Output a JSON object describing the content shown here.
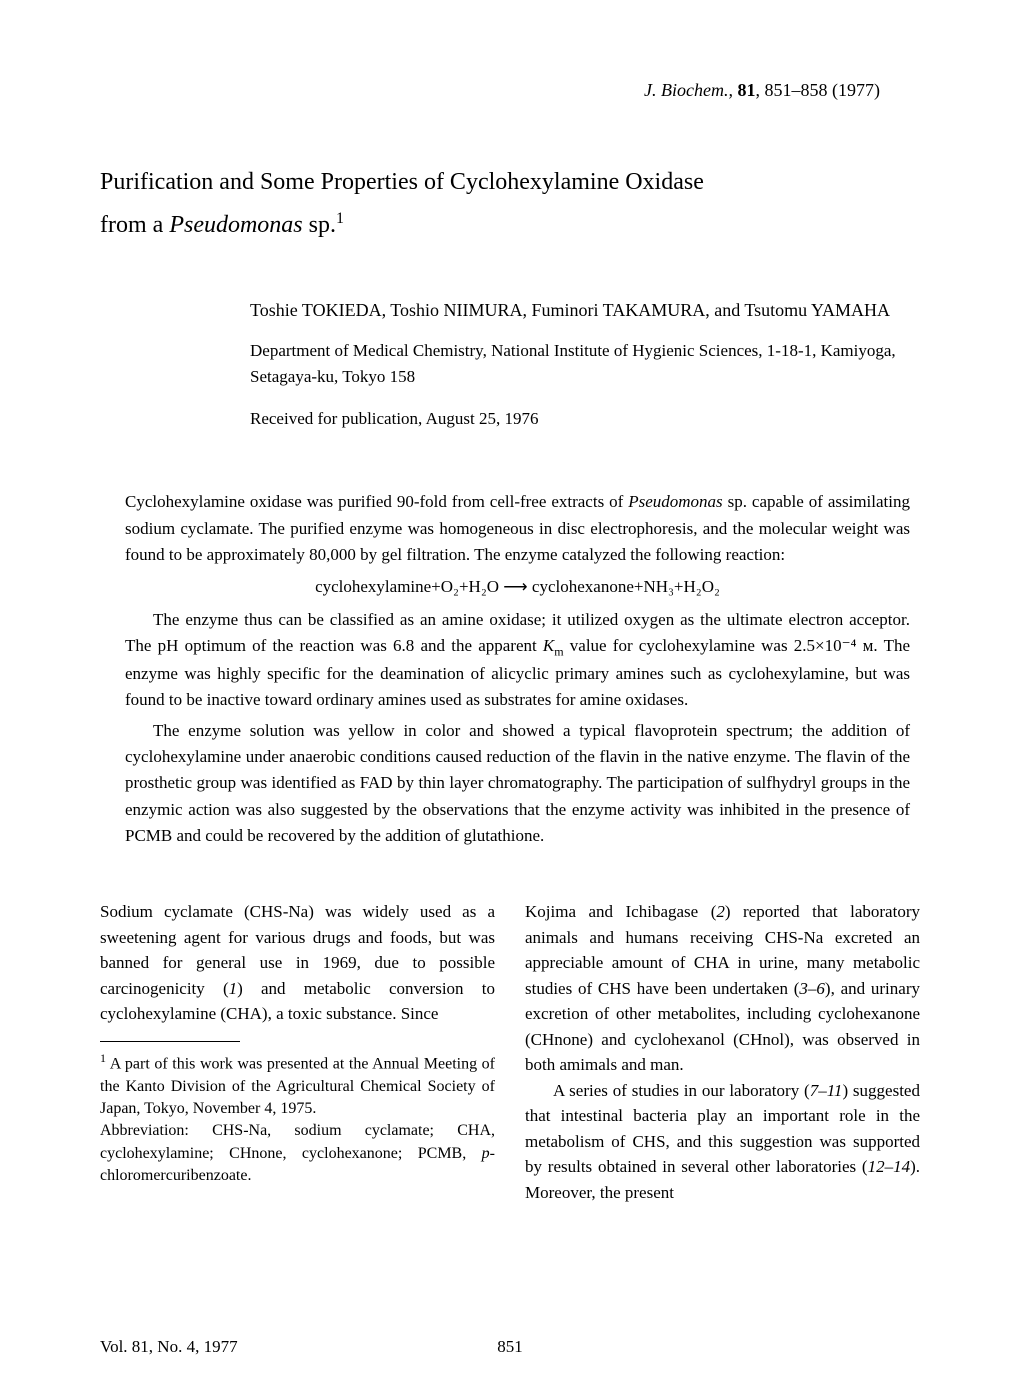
{
  "journal": {
    "name": "J. Biochem.,",
    "volume": "81",
    "pages": "851–858 (1977)"
  },
  "title": {
    "line1": "Purification and Some Properties of Cyclohexylamine Oxidase",
    "line2_prefix": "from a ",
    "line2_species": "Pseudomonas",
    "line2_suffix": " sp.",
    "footnote_mark": "1"
  },
  "authors": "Toshie TOKIEDA, Toshio NIIMURA, Fuminori TAKAMURA, and Tsutomu YAMAHA",
  "affiliation": "Department of Medical Chemistry, National Institute of Hygienic Sciences, 1-18-1, Kamiyoga, Setagaya-ku, Tokyo 158",
  "received": "Received for publication, August 25, 1976",
  "abstract": {
    "p1_a": "Cyclohexylamine oxidase was purified 90-fold from cell-free extracts of ",
    "p1_species": "Pseudomonas",
    "p1_b": " sp. capable of assimilating sodium cyclamate. The purified enzyme was homogeneous in disc electrophoresis, and the molecular weight was found to be approximately 80,000 by gel filtration. The enzyme catalyzed the following reaction:",
    "equation": "cyclohexylamine+O₂+H₂O ⟶ cyclohexanone+NH₃+H₂O₂",
    "p2_a": "The enzyme thus can be classified as an amine oxidase; it utilized oxygen as the ultimate electron acceptor. The pH optimum of the reaction was 6.8 and the apparent ",
    "p2_km": "K",
    "p2_km_sub": "m",
    "p2_b": " value for cyclohexylamine was 2.5×10⁻⁴ ᴍ. The enzyme was highly specific for the deamination of alicyclic primary amines such as cyclohexylamine, but was found to be inactive toward ordinary amines used as substrates for amine oxidases.",
    "p3": "The enzyme solution was yellow in color and showed a typical flavoprotein spectrum; the addition of cyclohexylamine under anaerobic conditions caused reduction of the flavin in the native enzyme. The flavin of the prosthetic group was identified as FAD by thin layer chromatography. The participation of sulfhydryl groups in the enzymic action was also suggested by the observations that the enzyme activity was inhibited in the presence of PCMB and could be recovered by the addition of glutathione."
  },
  "body": {
    "col1_p1_a": "Sodium cyclamate (CHS-Na) was widely used as a sweetening agent for various drugs and foods, but was banned for general use in 1969, due to possible carcinogenicity (",
    "col1_p1_ref1": "1",
    "col1_p1_b": ") and metabolic conversion to cyclohexylamine (CHA), a toxic substance. Since",
    "col2_p1_a": "Kojima and Ichibagase (",
    "col2_p1_ref1": "2",
    "col2_p1_b": ") reported that laboratory animals and humans receiving CHS-Na excreted an appreciable amount of CHA in urine, many metabolic studies of CHS have been undertaken (",
    "col2_p1_ref2": "3–6",
    "col2_p1_c": "), and urinary excretion of other metabolites, including cyclohexanone (CHnone) and cyclohexanol (CHnol), was observed in both amimals and man.",
    "col2_p2_a": "A series of studies in our laboratory (",
    "col2_p2_ref1": "7–11",
    "col2_p2_b": ") suggested that intestinal bacteria play an important role in the metabolism of CHS, and this suggestion was supported by results obtained in several other laboratories (",
    "col2_p2_ref2": "12–14",
    "col2_p2_c": "). Moreover, the present"
  },
  "footnotes": {
    "fn1_mark": "1",
    "fn1": " A part of this work was presented at the Annual Meeting of the Kanto Division of the Agricultural Chemical Society of Japan, Tokyo, November 4, 1975.",
    "abbr_a": "Abbreviation: CHS-Na, sodium cyclamate; CHA, cyclohexylamine; CHnone, cyclohexanone; PCMB, ",
    "abbr_b": "p",
    "abbr_c": "-chloromercuribenzoate."
  },
  "footer": {
    "issue": "Vol. 81, No. 4, 1977",
    "page": "851"
  },
  "colors": {
    "text": "#000000",
    "background": "#ffffff"
  },
  "fontsizes": {
    "journal_ref": 18,
    "title": 24,
    "authors": 18,
    "affiliation": 17,
    "body": 17,
    "footnote": 16
  }
}
